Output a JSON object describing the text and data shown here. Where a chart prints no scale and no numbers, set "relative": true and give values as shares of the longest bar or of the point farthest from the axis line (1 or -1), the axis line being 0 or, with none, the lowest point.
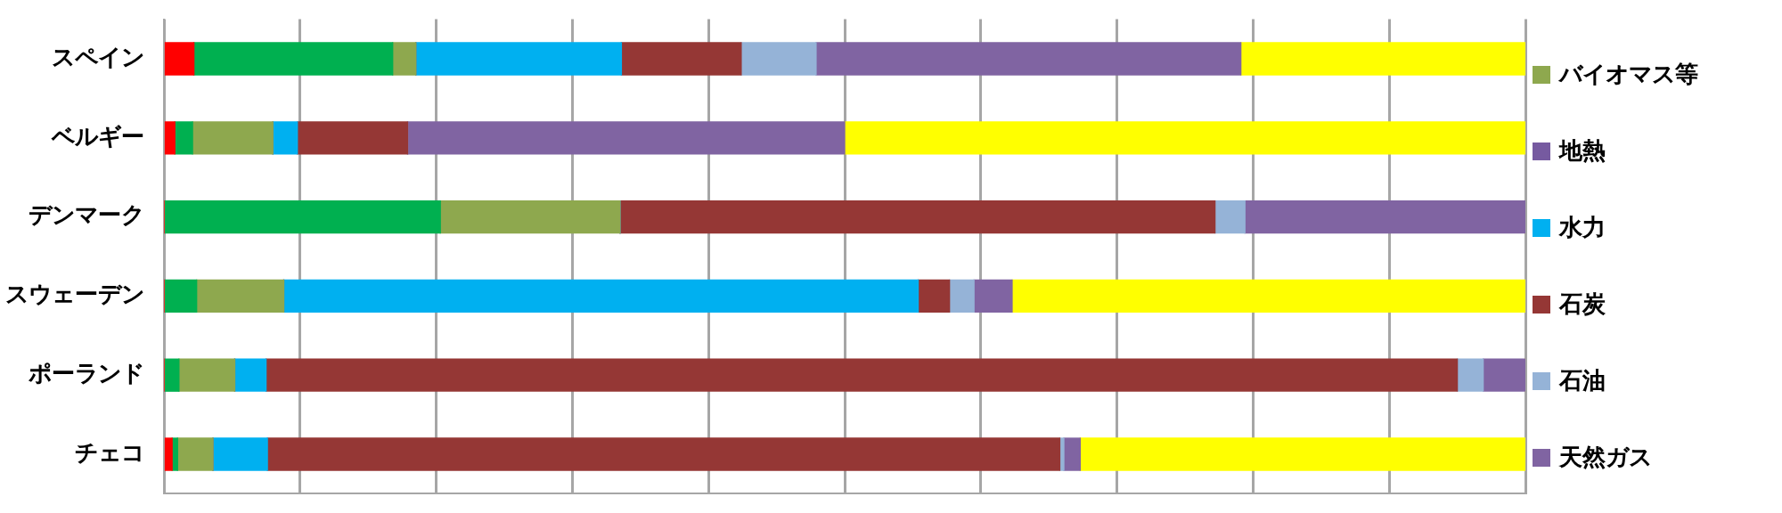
{
  "chart_data": {
    "type": "bar",
    "orientation": "horizontal",
    "stacked": true,
    "relative": true,
    "grid": "x",
    "legend": "right",
    "categories": [
      "スペイン",
      "ベルギー",
      "デンマーク",
      "スウェーデン",
      "ポーランド",
      "チェコ"
    ],
    "series": [
      {
        "color": "#ff0000",
        "values": [
          0.022,
          0.008,
          0,
          0,
          0,
          0.006
        ]
      },
      {
        "color": "#00b050",
        "values": [
          0.146,
          0.013,
          0.203,
          0.024,
          0.011,
          0.004
        ]
      },
      {
        "name": "バイオマス等",
        "color": "#8ea84e",
        "values": [
          0.017,
          0.059,
          0.132,
          0.064,
          0.041,
          0.026
        ]
      },
      {
        "name": "地熱",
        "color": "#765aa0",
        "values": [
          0,
          0,
          0,
          0,
          0,
          0
        ]
      },
      {
        "name": "水力",
        "color": "#00b0f0",
        "values": [
          0.151,
          0.018,
          0,
          0.466,
          0.023,
          0.04
        ]
      },
      {
        "name": "石炭",
        "color": "#953735",
        "values": [
          0.088,
          0.081,
          0.437,
          0.023,
          0.875,
          0.582
        ]
      },
      {
        "name": "石油",
        "color": "#95b3d7",
        "values": [
          0.055,
          0,
          0.022,
          0.018,
          0.019,
          0.003
        ]
      },
      {
        "name": "天然ガス",
        "color": "#8064a2",
        "values": [
          0.312,
          0.321,
          0.206,
          0.028,
          0.031,
          0.012
        ]
      },
      {
        "color": "#ffff00",
        "values": [
          0.209,
          0.5,
          0,
          0.377,
          0,
          0.327
        ]
      }
    ]
  }
}
